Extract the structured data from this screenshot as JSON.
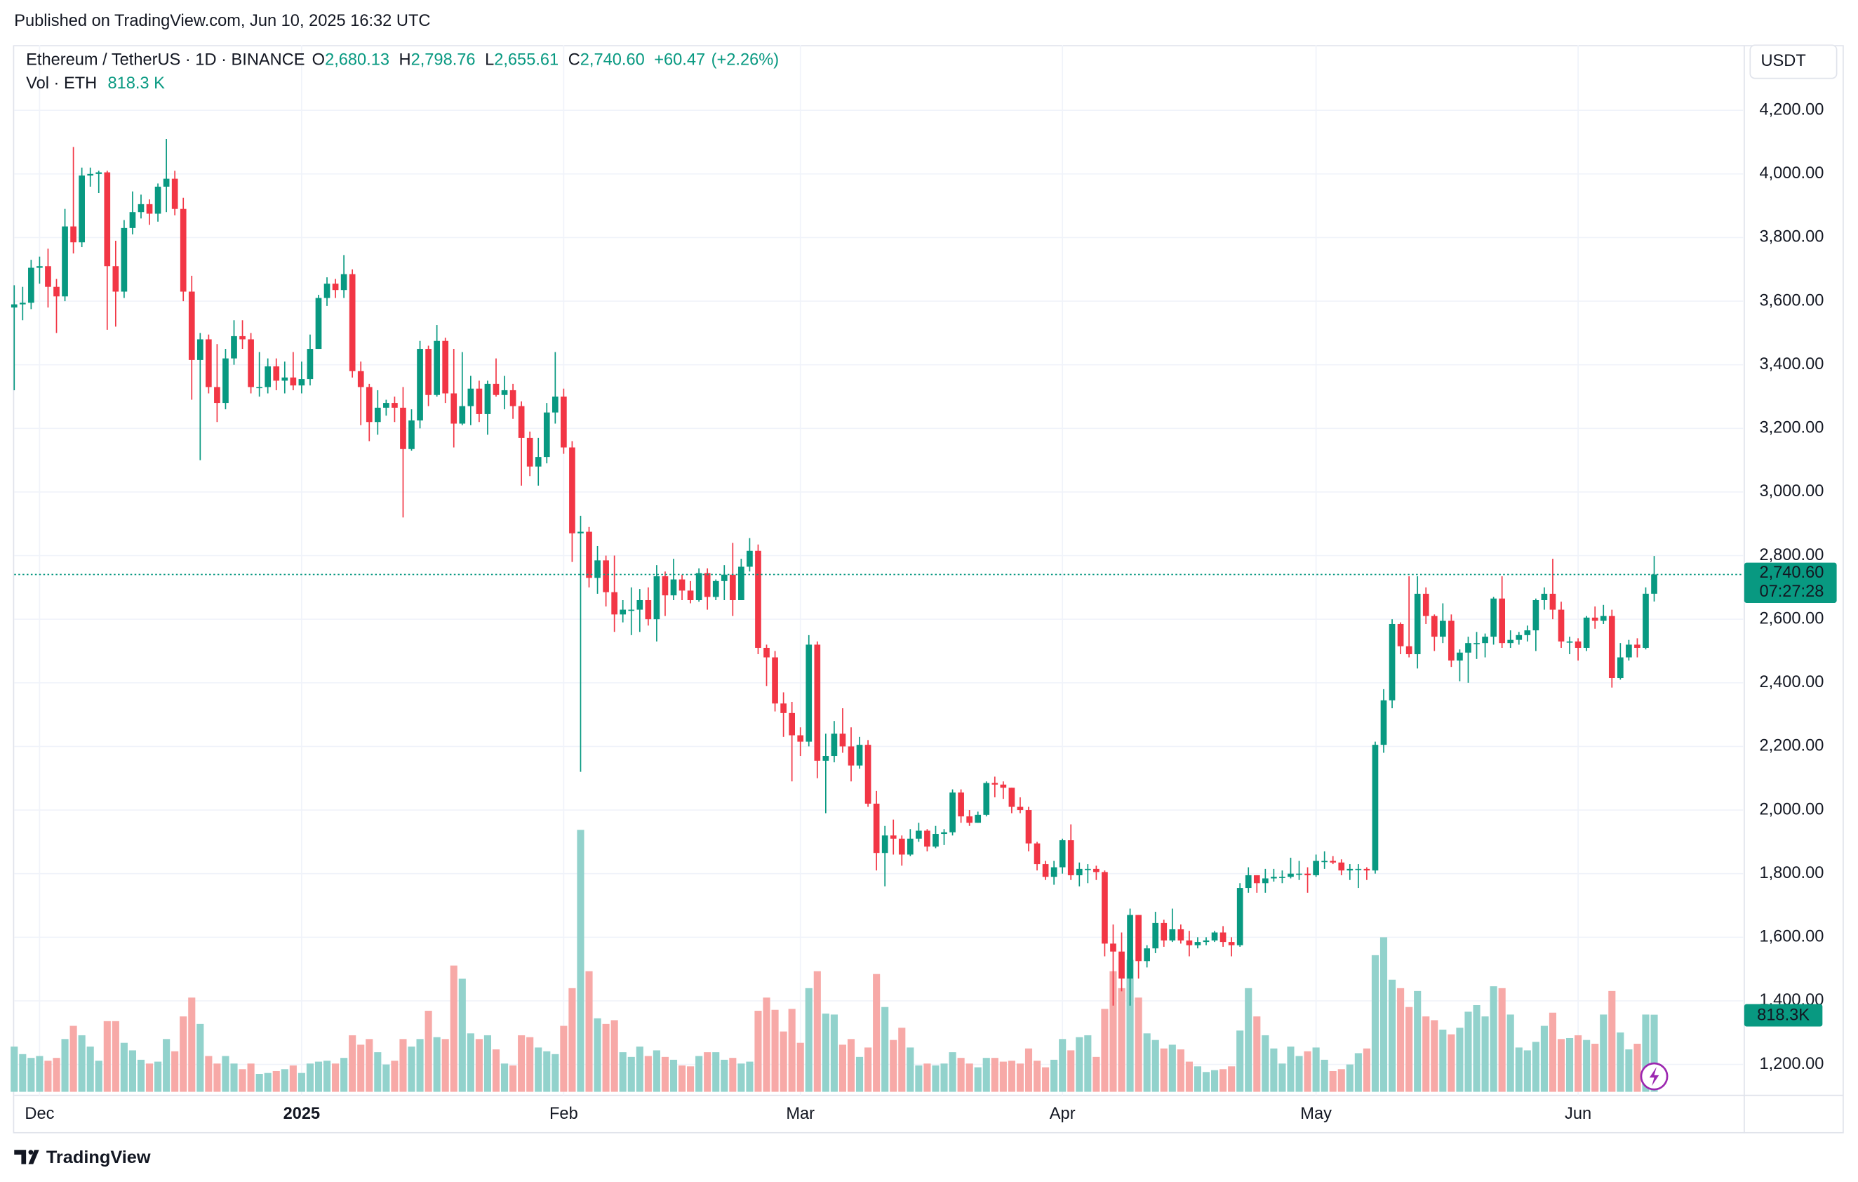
{
  "published": "Published on TradingView.com, Jun 10, 2025 16:32 UTC",
  "footer": "TradingView",
  "chart_data": {
    "type": "candlestick",
    "symbol": "Ethereum / TetherUS · 1D · BINANCE",
    "ohlc_letters": [
      "O",
      "H",
      "L",
      "C"
    ],
    "last_labels": {
      "open": "2,680.13",
      "high": "2,798.76",
      "low": "2,655.61",
      "close": "2,740.60",
      "change": "+60.47",
      "change_pct": "(+2.26%)"
    },
    "volume_title": "Vol · ETH",
    "volume_labels": {
      "header": "818.3 K",
      "tag": "818.3K"
    },
    "countdown": "07:27:28",
    "currency": "USDT",
    "categories": [
      null,
      null,
      null,
      "Dec",
      null,
      null,
      null,
      null,
      null,
      null,
      null,
      null,
      null,
      null,
      null,
      null,
      null,
      null,
      null,
      null,
      null,
      null,
      null,
      null,
      null,
      null,
      null,
      null,
      null,
      null,
      null,
      null,
      null,
      null,
      "2025",
      null,
      null,
      null,
      null,
      null,
      null,
      null,
      null,
      null,
      null,
      null,
      null,
      null,
      null,
      null,
      null,
      null,
      null,
      null,
      null,
      null,
      null,
      null,
      null,
      null,
      null,
      null,
      null,
      null,
      null,
      "Feb",
      null,
      null,
      null,
      null,
      null,
      null,
      null,
      null,
      null,
      null,
      null,
      null,
      null,
      null,
      null,
      null,
      null,
      null,
      null,
      null,
      null,
      null,
      null,
      null,
      null,
      null,
      null,
      "Mar",
      null,
      null,
      null,
      null,
      null,
      null,
      null,
      null,
      null,
      null,
      null,
      null,
      null,
      null,
      null,
      null,
      null,
      null,
      null,
      null,
      null,
      null,
      null,
      null,
      null,
      null,
      null,
      null,
      null,
      null,
      "Apr",
      null,
      null,
      null,
      null,
      null,
      null,
      null,
      null,
      null,
      null,
      null,
      null,
      null,
      null,
      null,
      null,
      null,
      null,
      null,
      null,
      null,
      null,
      null,
      null,
      null,
      null,
      null,
      null,
      null,
      "May",
      null,
      null,
      null,
      null,
      null,
      null,
      null,
      null,
      null,
      null,
      null,
      null,
      null,
      null,
      null,
      null,
      null,
      null,
      null,
      null,
      null,
      null,
      null,
      null,
      null,
      null,
      null,
      null,
      null,
      null,
      "Jun",
      null,
      null,
      null,
      null,
      null,
      null,
      null,
      null,
      null
    ],
    "open": [
      3580,
      3590,
      3595,
      3705,
      3710,
      3645,
      3615,
      3835,
      3785,
      3995,
      4000,
      4005,
      3710,
      3630,
      3830,
      3880,
      3905,
      3875,
      3960,
      3985,
      3890,
      3630,
      3415,
      3480,
      3330,
      3280,
      3420,
      3490,
      3480,
      3330,
      3330,
      3395,
      3350,
      3360,
      3335,
      3355,
      3450,
      3610,
      3655,
      3635,
      3685,
      3380,
      3330,
      3220,
      3265,
      3280,
      3265,
      3135,
      3225,
      3450,
      3305,
      3475,
      3310,
      3215,
      3270,
      3325,
      3245,
      3340,
      3305,
      3320,
      3270,
      3170,
      3080,
      3110,
      3250,
      3300,
      3140,
      2870,
      2875,
      2730,
      2785,
      2685,
      2615,
      2630,
      2630,
      2660,
      2600,
      2735,
      2675,
      2725,
      2690,
      2660,
      2745,
      2670,
      2720,
      2740,
      2660,
      2765,
      2815,
      2510,
      2480,
      2335,
      2305,
      2235,
      2215,
      2520,
      2155,
      2170,
      2240,
      2200,
      2140,
      2205,
      2020,
      1865,
      1920,
      1910,
      1860,
      1910,
      1935,
      1885,
      1925,
      1930,
      2055,
      1980,
      1960,
      1985,
      2085,
      2080,
      2070,
      2010,
      2000,
      1895,
      1830,
      1790,
      1820,
      1905,
      1795,
      1815,
      1815,
      1805,
      1580,
      1555,
      1470,
      1670,
      1525,
      1565,
      1645,
      1590,
      1625,
      1590,
      1575,
      1585,
      1590,
      1615,
      1585,
      1575,
      1755,
      1795,
      1770,
      1785,
      1790,
      1790,
      1800,
      1800,
      1795,
      1840,
      1840,
      1835,
      1810,
      1815,
      1815,
      1810,
      2205,
      2345,
      2585,
      2515,
      2490,
      2680,
      2610,
      2545,
      2595,
      2470,
      2495,
      2525,
      2525,
      2545,
      2665,
      2525,
      2535,
      2550,
      2565,
      2660,
      2680,
      2630,
      2530,
      2530,
      2510,
      2605,
      2595,
      2610,
      2415,
      2480,
      2520,
      2510,
      2680.13
    ],
    "high": [
      3650,
      3645,
      3730,
      3740,
      3765,
      3670,
      3890,
      4085,
      4020,
      4020,
      4010,
      4010,
      3790,
      3855,
      3945,
      3935,
      3920,
      3970,
      4110,
      4010,
      3925,
      3680,
      3500,
      3495,
      3465,
      3450,
      3540,
      3540,
      3500,
      3440,
      3420,
      3420,
      3410,
      3440,
      3410,
      3495,
      3620,
      3675,
      3670,
      3745,
      3700,
      3410,
      3340,
      3320,
      3290,
      3300,
      3330,
      3260,
      3475,
      3460,
      3525,
      3485,
      3450,
      3440,
      3365,
      3350,
      3350,
      3420,
      3365,
      3340,
      3285,
      3190,
      3170,
      3280,
      3440,
      3325,
      3160,
      2925,
      2890,
      2830,
      2800,
      2800,
      2660,
      2700,
      2695,
      2700,
      2770,
      2750,
      2790,
      2740,
      2720,
      2760,
      2760,
      2725,
      2770,
      2840,
      2790,
      2855,
      2835,
      2520,
      2500,
      2370,
      2340,
      2260,
      2550,
      2530,
      2240,
      2280,
      2320,
      2260,
      2230,
      2220,
      2060,
      1950,
      1970,
      1920,
      1940,
      1960,
      1940,
      1950,
      1940,
      2065,
      2065,
      2000,
      1995,
      2090,
      2105,
      2090,
      2070,
      2040,
      2010,
      1900,
      1840,
      1840,
      1910,
      1955,
      1835,
      1830,
      1825,
      1810,
      1640,
      1615,
      1690,
      1670,
      1575,
      1680,
      1655,
      1690,
      1640,
      1620,
      1600,
      1600,
      1620,
      1635,
      1600,
      1770,
      1820,
      1795,
      1815,
      1815,
      1810,
      1850,
      1840,
      1820,
      1860,
      1870,
      1855,
      1845,
      1830,
      1830,
      1820,
      2215,
      2380,
      2600,
      2590,
      2735,
      2735,
      2700,
      2615,
      2650,
      2615,
      2505,
      2545,
      2560,
      2555,
      2670,
      2735,
      2565,
      2560,
      2580,
      2665,
      2700,
      2790,
      2655,
      2545,
      2540,
      2610,
      2640,
      2645,
      2630,
      2525,
      2535,
      2540,
      2700,
      2798.76
    ],
    "low": [
      3320,
      3540,
      3575,
      3655,
      3580,
      3500,
      3600,
      3750,
      3770,
      3960,
      3940,
      3510,
      3520,
      3610,
      3810,
      3860,
      3840,
      3850,
      3880,
      3870,
      3600,
      3290,
      3100,
      3310,
      3220,
      3260,
      3400,
      3450,
      3310,
      3300,
      3310,
      3320,
      3310,
      3320,
      3310,
      3335,
      3450,
      3585,
      3610,
      3610,
      3360,
      3210,
      3160,
      3180,
      3240,
      3220,
      2920,
      3130,
      3200,
      3270,
      3300,
      3280,
      3140,
      3210,
      3210,
      3220,
      3180,
      3300,
      3260,
      3230,
      3020,
      3050,
      3020,
      3090,
      3215,
      3120,
      2780,
      2120,
      2700,
      2680,
      2640,
      2560,
      2590,
      2550,
      2560,
      2580,
      2530,
      2610,
      2660,
      2660,
      2650,
      2655,
      2630,
      2660,
      2660,
      2610,
      2660,
      2750,
      2490,
      2390,
      2310,
      2230,
      2090,
      2170,
      2200,
      2100,
      1990,
      2150,
      2180,
      2090,
      2130,
      2010,
      1810,
      1760,
      1860,
      1825,
      1855,
      1900,
      1870,
      1880,
      1890,
      1920,
      1960,
      1950,
      1960,
      1980,
      2040,
      2035,
      1990,
      1990,
      1870,
      1810,
      1780,
      1765,
      1800,
      1780,
      1760,
      1770,
      1780,
      1540,
      1385,
      1430,
      1385,
      1470,
      1505,
      1550,
      1570,
      1585,
      1580,
      1540,
      1565,
      1575,
      1585,
      1570,
      1540,
      1570,
      1740,
      1740,
      1740,
      1775,
      1770,
      1785,
      1780,
      1740,
      1790,
      1815,
      1830,
      1795,
      1780,
      1755,
      1780,
      1800,
      2180,
      2320,
      2490,
      2480,
      2445,
      2585,
      2500,
      2525,
      2450,
      2405,
      2400,
      2475,
      2480,
      2520,
      2510,
      2510,
      2520,
      2530,
      2500,
      2630,
      2600,
      2510,
      2490,
      2470,
      2500,
      2570,
      2585,
      2385,
      2410,
      2470,
      2480,
      2505,
      2655.61
    ],
    "close": [
      3590,
      3595,
      3705,
      3710,
      3645,
      3615,
      3835,
      3785,
      3995,
      4000,
      4005,
      3710,
      3630,
      3830,
      3880,
      3905,
      3875,
      3960,
      3985,
      3890,
      3630,
      3415,
      3480,
      3330,
      3280,
      3420,
      3490,
      3480,
      3330,
      3330,
      3395,
      3350,
      3360,
      3335,
      3355,
      3450,
      3610,
      3655,
      3635,
      3685,
      3380,
      3330,
      3220,
      3265,
      3280,
      3265,
      3135,
      3225,
      3450,
      3305,
      3475,
      3310,
      3215,
      3270,
      3325,
      3245,
      3340,
      3305,
      3320,
      3270,
      3170,
      3080,
      3110,
      3250,
      3300,
      3140,
      2870,
      2875,
      2730,
      2785,
      2685,
      2615,
      2630,
      2630,
      2660,
      2600,
      2735,
      2675,
      2725,
      2690,
      2660,
      2745,
      2670,
      2720,
      2740,
      2660,
      2765,
      2815,
      2510,
      2480,
      2335,
      2305,
      2235,
      2215,
      2520,
      2155,
      2170,
      2240,
      2200,
      2140,
      2205,
      2020,
      1865,
      1920,
      1910,
      1860,
      1910,
      1935,
      1885,
      1925,
      1930,
      2055,
      1980,
      1960,
      1985,
      2085,
      2080,
      2070,
      2010,
      2000,
      1895,
      1830,
      1790,
      1820,
      1905,
      1795,
      1815,
      1815,
      1805,
      1580,
      1555,
      1470,
      1670,
      1525,
      1565,
      1645,
      1590,
      1625,
      1590,
      1575,
      1585,
      1590,
      1615,
      1585,
      1575,
      1755,
      1795,
      1770,
      1785,
      1790,
      1790,
      1800,
      1800,
      1795,
      1840,
      1840,
      1835,
      1810,
      1815,
      1815,
      1810,
      2205,
      2345,
      2585,
      2515,
      2490,
      2680,
      2610,
      2545,
      2595,
      2470,
      2495,
      2525,
      2525,
      2545,
      2665,
      2525,
      2535,
      2550,
      2565,
      2660,
      2680,
      2630,
      2530,
      2530,
      2510,
      2605,
      2595,
      2610,
      2415,
      2480,
      2520,
      2510,
      2680.13,
      2740.6
    ],
    "volume": [
      480000,
      400000,
      360000,
      380000,
      330000,
      360000,
      560000,
      700000,
      600000,
      480000,
      330000,
      750000,
      750000,
      520000,
      440000,
      340000,
      300000,
      320000,
      560000,
      430000,
      800000,
      1000000,
      720000,
      380000,
      300000,
      380000,
      300000,
      240000,
      300000,
      190000,
      200000,
      220000,
      240000,
      280000,
      200000,
      300000,
      320000,
      330000,
      300000,
      360000,
      600000,
      500000,
      560000,
      420000,
      290000,
      330000,
      560000,
      480000,
      560000,
      860000,
      580000,
      560000,
      1340000,
      1200000,
      620000,
      560000,
      600000,
      450000,
      300000,
      280000,
      600000,
      580000,
      470000,
      430000,
      400000,
      700000,
      1100000,
      2780000,
      1280000,
      780000,
      720000,
      760000,
      420000,
      370000,
      480000,
      380000,
      440000,
      370000,
      340000,
      280000,
      270000,
      380000,
      420000,
      420000,
      340000,
      360000,
      300000,
      320000,
      860000,
      1000000,
      870000,
      640000,
      880000,
      520000,
      1100000,
      1280000,
      830000,
      820000,
      500000,
      560000,
      370000,
      470000,
      1250000,
      900000,
      550000,
      680000,
      470000,
      280000,
      300000,
      280000,
      300000,
      420000,
      360000,
      300000,
      260000,
      360000,
      360000,
      320000,
      330000,
      300000,
      460000,
      330000,
      260000,
      340000,
      560000,
      440000,
      580000,
      600000,
      370000,
      880000,
      1280000,
      1100000,
      1400000,
      1000000,
      620000,
      550000,
      460000,
      500000,
      450000,
      320000,
      270000,
      210000,
      230000,
      240000,
      270000,
      650000,
      1100000,
      800000,
      600000,
      460000,
      300000,
      480000,
      380000,
      430000,
      470000,
      340000,
      220000,
      240000,
      290000,
      410000,
      460000,
      1450000,
      1640000,
      1190000,
      1100000,
      900000,
      1070000,
      800000,
      760000,
      660000,
      610000,
      680000,
      850000,
      920000,
      800000,
      1120000,
      1100000,
      820000,
      470000,
      440000,
      530000,
      700000,
      840000,
      560000,
      570000,
      600000,
      550000,
      510000,
      820000,
      1070000,
      630000,
      450000,
      510000,
      820000,
      818300
    ],
    "up_color": "#089981",
    "down_color": "#f23645",
    "up_volume_color": "#92d2cc",
    "down_volume_color": "#f7a9a7",
    "ylim": [
      1114,
      4405
    ],
    "yticks": [
      {
        "value": 1200,
        "label": "1,200.00"
      },
      {
        "value": 1400,
        "label": "1,400.00"
      },
      {
        "value": 1600,
        "label": "1,600.00"
      },
      {
        "value": 1800,
        "label": "1,800.00"
      },
      {
        "value": 2000,
        "label": "2,000.00"
      },
      {
        "value": 2200,
        "label": "2,200.00"
      },
      {
        "value": 2400,
        "label": "2,400.00"
      },
      {
        "value": 2600,
        "label": "2,600.00"
      },
      {
        "value": 2800,
        "label": "2,800.00"
      },
      {
        "value": 3000,
        "label": "3,000.00"
      },
      {
        "value": 3200,
        "label": "3,200.00"
      },
      {
        "value": 3400,
        "label": "3,400.00"
      },
      {
        "value": 3600,
        "label": "3,600.00"
      },
      {
        "value": 3800,
        "label": "3,800.00"
      },
      {
        "value": 4000,
        "label": "4,000.00"
      },
      {
        "value": 4200,
        "label": "4,200.00"
      }
    ],
    "grid": true
  }
}
